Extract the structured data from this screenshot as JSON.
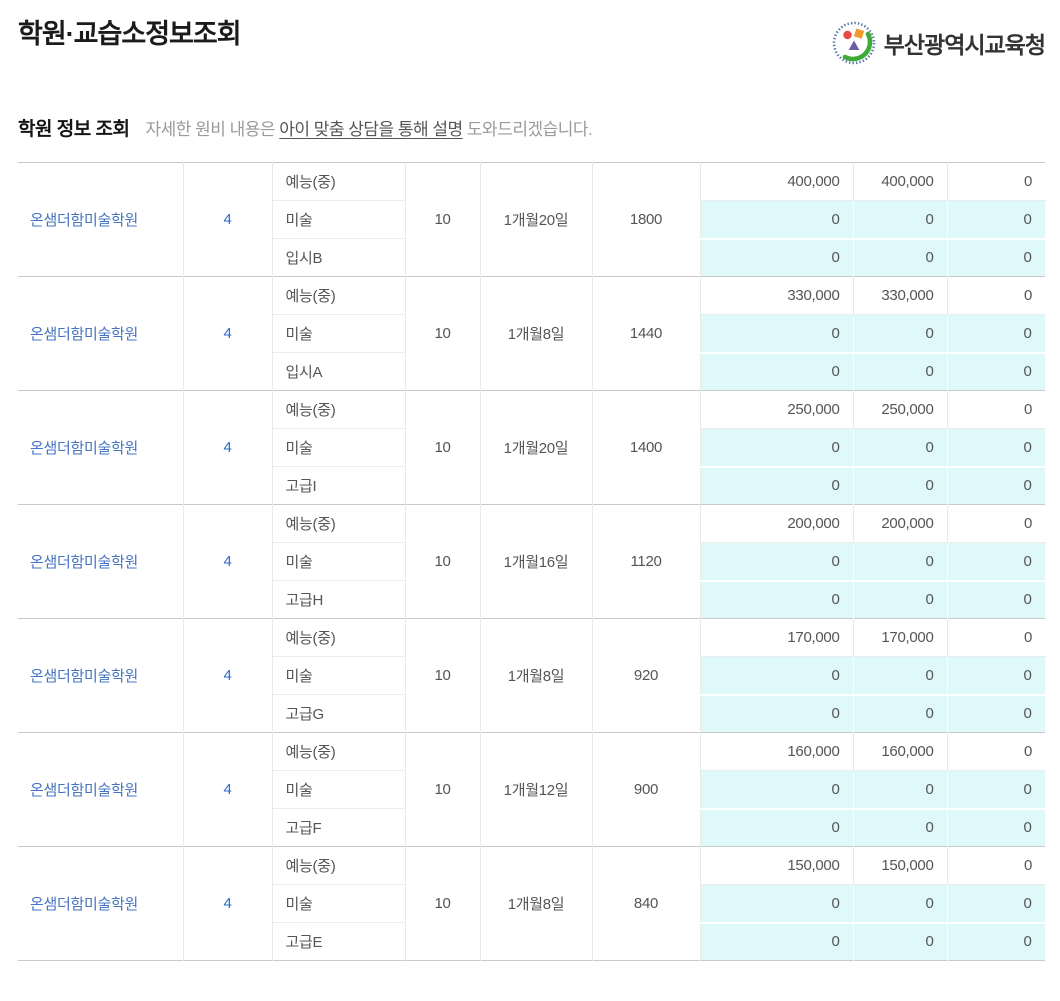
{
  "page": {
    "title": "학원·교습소정보조회"
  },
  "org": {
    "name": "부산광역시교육청"
  },
  "section": {
    "title": "학원 정보 조회",
    "notice_prefix": "자세한 원비 내용은 ",
    "notice_emphasis": "아이 맞춤 상담을 통해 설명",
    "notice_suffix": " 도와드리겠습니다."
  },
  "colors": {
    "link_blue": "#4574c4",
    "count_blue": "#2d6bcb",
    "highlight_cyan": "#dff9fb",
    "group_border": "#c9c9c9",
    "cell_border": "#e9e9e9",
    "text_gray": "#555555"
  },
  "table": {
    "groups": [
      {
        "name": "온샘더함미술학원",
        "report_count": "4",
        "courses": [
          "예능(중)",
          "미술",
          "입시B"
        ],
        "capacity": "10",
        "duration": "1개월20일",
        "total_hours": "1800",
        "fee_rows": [
          [
            "400,000",
            "400,000",
            "0"
          ],
          [
            "0",
            "0",
            "0"
          ],
          [
            "0",
            "0",
            "0"
          ]
        ]
      },
      {
        "name": "온샘더함미술학원",
        "report_count": "4",
        "courses": [
          "예능(중)",
          "미술",
          "입시A"
        ],
        "capacity": "10",
        "duration": "1개월8일",
        "total_hours": "1440",
        "fee_rows": [
          [
            "330,000",
            "330,000",
            "0"
          ],
          [
            "0",
            "0",
            "0"
          ],
          [
            "0",
            "0",
            "0"
          ]
        ]
      },
      {
        "name": "온샘더함미술학원",
        "report_count": "4",
        "courses": [
          "예능(중)",
          "미술",
          "고급I"
        ],
        "capacity": "10",
        "duration": "1개월20일",
        "total_hours": "1400",
        "fee_rows": [
          [
            "250,000",
            "250,000",
            "0"
          ],
          [
            "0",
            "0",
            "0"
          ],
          [
            "0",
            "0",
            "0"
          ]
        ]
      },
      {
        "name": "온샘더함미술학원",
        "report_count": "4",
        "courses": [
          "예능(중)",
          "미술",
          "고급H"
        ],
        "capacity": "10",
        "duration": "1개월16일",
        "total_hours": "1120",
        "fee_rows": [
          [
            "200,000",
            "200,000",
            "0"
          ],
          [
            "0",
            "0",
            "0"
          ],
          [
            "0",
            "0",
            "0"
          ]
        ]
      },
      {
        "name": "온샘더함미술학원",
        "report_count": "4",
        "courses": [
          "예능(중)",
          "미술",
          "고급G"
        ],
        "capacity": "10",
        "duration": "1개월8일",
        "total_hours": "920",
        "fee_rows": [
          [
            "170,000",
            "170,000",
            "0"
          ],
          [
            "0",
            "0",
            "0"
          ],
          [
            "0",
            "0",
            "0"
          ]
        ]
      },
      {
        "name": "온샘더함미술학원",
        "report_count": "4",
        "courses": [
          "예능(중)",
          "미술",
          "고급F"
        ],
        "capacity": "10",
        "duration": "1개월12일",
        "total_hours": "900",
        "fee_rows": [
          [
            "160,000",
            "160,000",
            "0"
          ],
          [
            "0",
            "0",
            "0"
          ],
          [
            "0",
            "0",
            "0"
          ]
        ]
      },
      {
        "name": "온샘더함미술학원",
        "report_count": "4",
        "courses": [
          "예능(중)",
          "미술",
          "고급E"
        ],
        "capacity": "10",
        "duration": "1개월8일",
        "total_hours": "840",
        "fee_rows": [
          [
            "150,000",
            "150,000",
            "0"
          ],
          [
            "0",
            "0",
            "0"
          ],
          [
            "0",
            "0",
            "0"
          ]
        ]
      }
    ]
  }
}
